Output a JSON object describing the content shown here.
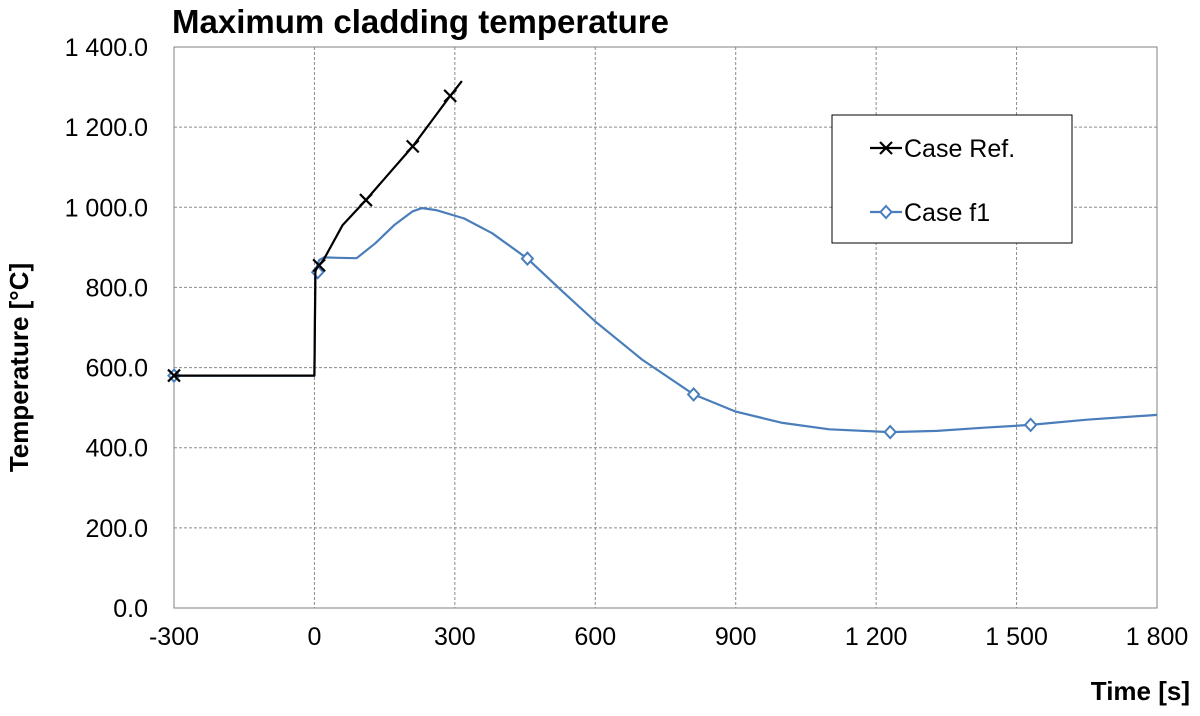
{
  "chart_data": {
    "type": "line",
    "title": "Maximum cladding temperature",
    "xlabel": "Time [s]",
    "ylabel": "Temperature [°C]",
    "xlim": [
      -300,
      1800
    ],
    "ylim": [
      0,
      1400
    ],
    "grid": true,
    "legend_position": "top-right",
    "x_ticks": [
      {
        "value": -300,
        "label": "-300"
      },
      {
        "value": 0,
        "label": "0"
      },
      {
        "value": 300,
        "label": "300"
      },
      {
        "value": 600,
        "label": "600"
      },
      {
        "value": 900,
        "label": "900"
      },
      {
        "value": 1200,
        "label": "1 200"
      },
      {
        "value": 1500,
        "label": "1 500"
      },
      {
        "value": 1800,
        "label": "1 800"
      }
    ],
    "y_ticks": [
      {
        "value": 0,
        "label": "0.0"
      },
      {
        "value": 200,
        "label": "200.0"
      },
      {
        "value": 400,
        "label": "400.0"
      },
      {
        "value": 600,
        "label": "600.0"
      },
      {
        "value": 800,
        "label": "800.0"
      },
      {
        "value": 1000,
        "label": "1 000.0"
      },
      {
        "value": 1200,
        "label": "1 200.0"
      },
      {
        "value": 1400,
        "label": "1 400.0"
      }
    ],
    "series": [
      {
        "name": "Case Ref.",
        "legend_label": "Case Ref.",
        "color": "#000000",
        "marker": "x",
        "points": [
          [
            -300,
            580
          ],
          [
            0,
            580
          ],
          [
            2,
            840
          ],
          [
            5,
            848
          ],
          [
            20,
            870
          ],
          [
            60,
            955
          ],
          [
            110,
            1018
          ],
          [
            160,
            1085
          ],
          [
            210,
            1152
          ],
          [
            250,
            1215
          ],
          [
            290,
            1278
          ],
          [
            315,
            1315
          ]
        ],
        "markers": [
          [
            -300,
            580
          ],
          [
            10,
            855
          ],
          [
            110,
            1018
          ],
          [
            210,
            1152
          ],
          [
            290,
            1278
          ]
        ]
      },
      {
        "name": "Case f1",
        "legend_label": "Case f1",
        "color": "#4a7ebb",
        "marker": "diamond",
        "points": [
          [
            -300,
            580
          ],
          [
            0,
            580
          ],
          [
            2,
            838
          ],
          [
            5,
            852
          ],
          [
            10,
            868
          ],
          [
            20,
            875
          ],
          [
            50,
            874
          ],
          [
            90,
            873
          ],
          [
            130,
            910
          ],
          [
            170,
            955
          ],
          [
            210,
            990
          ],
          [
            230,
            998
          ],
          [
            260,
            993
          ],
          [
            320,
            972
          ],
          [
            380,
            935
          ],
          [
            455,
            872
          ],
          [
            530,
            790
          ],
          [
            600,
            715
          ],
          [
            700,
            620
          ],
          [
            810,
            533
          ],
          [
            900,
            490
          ],
          [
            1000,
            462
          ],
          [
            1100,
            446
          ],
          [
            1230,
            439
          ],
          [
            1330,
            442
          ],
          [
            1430,
            450
          ],
          [
            1530,
            457
          ],
          [
            1650,
            470
          ],
          [
            1800,
            482
          ]
        ],
        "markers": [
          [
            -300,
            580
          ],
          [
            7,
            838
          ],
          [
            455,
            872
          ],
          [
            810,
            533
          ],
          [
            1230,
            439
          ],
          [
            1530,
            457
          ]
        ]
      }
    ]
  }
}
